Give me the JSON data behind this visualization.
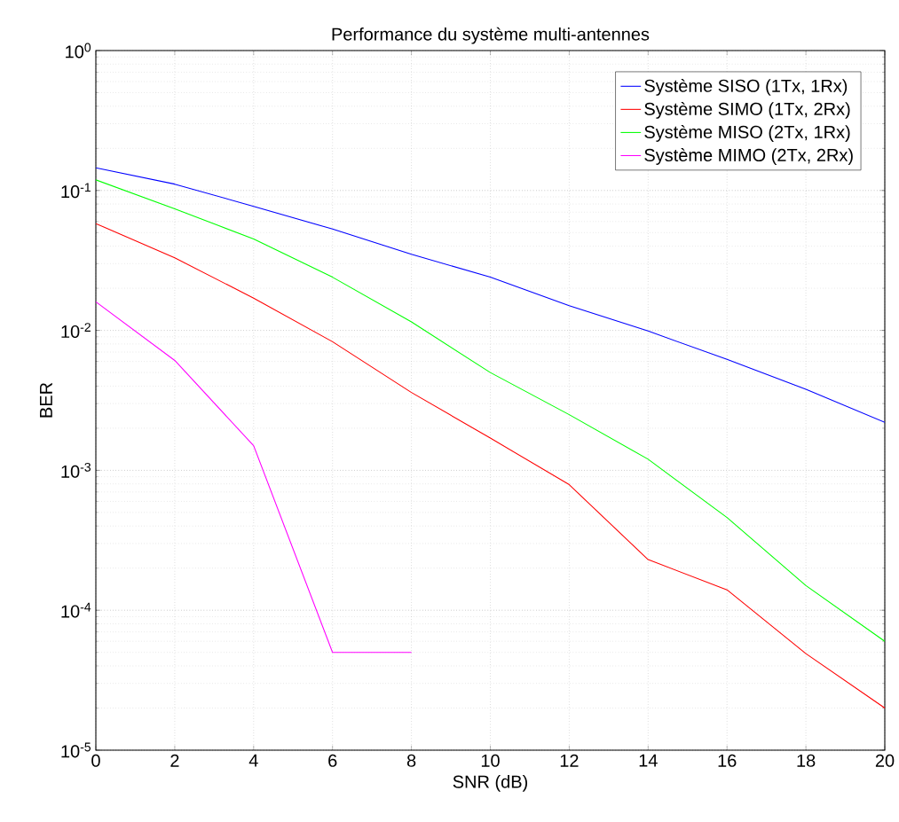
{
  "chart_data": {
    "type": "line",
    "title": "Performance du système multi-antennes",
    "xlabel": "SNR (dB)",
    "ylabel": "BER",
    "x": [
      0,
      2,
      4,
      6,
      8,
      10,
      12,
      14,
      16,
      18,
      20
    ],
    "series": [
      {
        "name": "Système SISO (1Tx, 1Rx)",
        "color": "#0000ff",
        "values": [
          0.145,
          0.111,
          0.077,
          0.053,
          0.035,
          0.024,
          0.015,
          0.0099,
          0.0062,
          0.0038,
          0.0022
        ]
      },
      {
        "name": "Système SIMO (1Tx, 2Rx)",
        "color": "#ff0000",
        "values": [
          0.058,
          0.033,
          0.017,
          0.0083,
          0.0036,
          0.0017,
          0.00079,
          0.00023,
          0.00014,
          4.9e-05,
          2e-05
        ]
      },
      {
        "name": "Système MISO (2Tx, 1Rx)",
        "color": "#00ff00",
        "values": [
          0.119,
          0.074,
          0.045,
          0.024,
          0.0115,
          0.005,
          0.0025,
          0.0012,
          0.00046,
          0.00015,
          6e-05
        ]
      },
      {
        "name": "Système MIMO (2Tx, 2Rx)",
        "color": "#ff00ff",
        "values": [
          0.016,
          0.0061,
          0.0015,
          5e-05,
          5e-05,
          null,
          null,
          null,
          null,
          null,
          null
        ]
      }
    ],
    "log": "y",
    "xlim": [
      0,
      20
    ],
    "ylim": [
      1e-05,
      1
    ],
    "xticks": [
      0,
      2,
      4,
      6,
      8,
      10,
      12,
      14,
      16,
      18,
      20
    ],
    "yticks": [
      {
        "value": 1e-05,
        "label": "10$^{-5}$"
      },
      {
        "value": 0.0001,
        "label": "10$^{-4}$"
      },
      {
        "value": 0.001,
        "label": "10$^{-3}$"
      },
      {
        "value": 0.01,
        "label": "10$^{-2}$"
      },
      {
        "value": 0.1,
        "label": "10$^{-1}$"
      },
      {
        "value": 1,
        "label": "10$^{0}$"
      }
    ],
    "grid": true,
    "legend": "top right"
  }
}
